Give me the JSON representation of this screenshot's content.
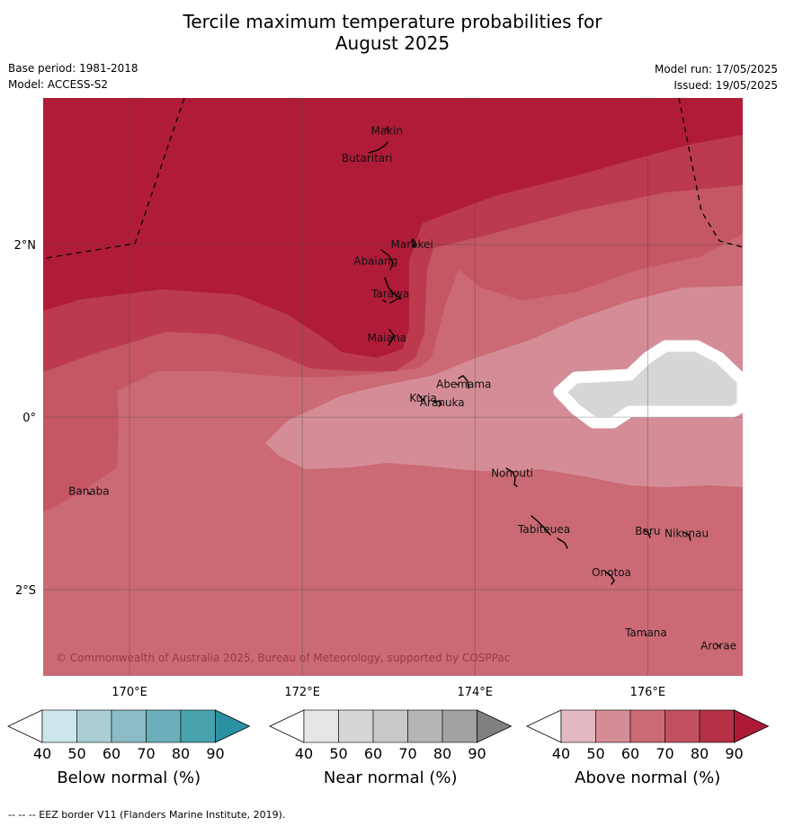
{
  "title_line1": "Tercile maximum temperature probabilities for",
  "title_line2": "August 2025",
  "meta": {
    "base_period": "Base period: 1981-2018",
    "model": "Model: ACCESS-S2",
    "model_run": "Model run: 17/05/2025",
    "issued": "Issued: 19/05/2025"
  },
  "map": {
    "lon_range": [
      169.0,
      177.1
    ],
    "lat_range": [
      -3.0,
      3.7
    ],
    "lon_ticks": [
      170,
      172,
      174,
      176
    ],
    "lon_tick_labels": [
      "170°E",
      "172°E",
      "174°E",
      "176°E"
    ],
    "lat_ticks": [
      2,
      0,
      -2
    ],
    "lat_tick_labels": [
      "2°N",
      "0°",
      "2°S"
    ],
    "copyright": "© Commonwealth of Australia 2025, Bureau of Meteorology, supported by COSPPac",
    "colors": {
      "above_90": "#b01c38",
      "above_80": "#bb3a4e",
      "above_70": "#c45762",
      "above_60": "#cb6a74",
      "above_50": "#d48d96",
      "near_50": "#d6d6d6"
    },
    "places": [
      {
        "name": "Makin",
        "lon": 172.98,
        "lat": 3.32
      },
      {
        "name": "Butaritari",
        "lon": 172.75,
        "lat": 3.0
      },
      {
        "name": "Marakei",
        "lon": 173.27,
        "lat": 2.0
      },
      {
        "name": "Abaiang",
        "lon": 172.85,
        "lat": 1.81
      },
      {
        "name": "Tarawa",
        "lon": 173.02,
        "lat": 1.43
      },
      {
        "name": "Maiana",
        "lon": 172.98,
        "lat": 0.92
      },
      {
        "name": "Abemama",
        "lon": 173.87,
        "lat": 0.38
      },
      {
        "name": "Kuria",
        "lon": 173.4,
        "lat": 0.22
      },
      {
        "name": "Aranuka",
        "lon": 173.62,
        "lat": 0.17
      },
      {
        "name": "Nonouti",
        "lon": 174.43,
        "lat": -0.65
      },
      {
        "name": "Banaba",
        "lon": 169.53,
        "lat": -0.86
      },
      {
        "name": "Tabiteuea",
        "lon": 174.8,
        "lat": -1.3
      },
      {
        "name": "Beru",
        "lon": 176.0,
        "lat": -1.32
      },
      {
        "name": "Nikunau",
        "lon": 176.45,
        "lat": -1.35
      },
      {
        "name": "Onotoa",
        "lon": 175.58,
        "lat": -1.8
      },
      {
        "name": "Tamana",
        "lon": 175.98,
        "lat": -2.5
      },
      {
        "name": "Arorae",
        "lon": 176.82,
        "lat": -2.65
      }
    ]
  },
  "colorbars": [
    {
      "title": "Below normal (%)",
      "ticks": [
        "40",
        "50",
        "60",
        "70",
        "80",
        "90"
      ],
      "colors": [
        "#ffffff",
        "#cce6ec",
        "#a9cdd5",
        "#8bbbc5",
        "#6caeba",
        "#48a2ae",
        "#2a91a2"
      ]
    },
    {
      "title": "Near normal (%)",
      "ticks": [
        "40",
        "50",
        "60",
        "70",
        "80",
        "90"
      ],
      "colors": [
        "#ffffff",
        "#e6e6e6",
        "#d6d6d6",
        "#c8c8c8",
        "#b5b5b5",
        "#a1a1a1",
        "#808080"
      ]
    },
    {
      "title": "Above normal (%)",
      "ticks": [
        "40",
        "50",
        "60",
        "70",
        "80",
        "90"
      ],
      "colors": [
        "#ffffff",
        "#e3b8c0",
        "#d48d96",
        "#cb6a74",
        "#c2505f",
        "#b53044",
        "#ad1a34"
      ]
    }
  ],
  "footer": "-- -- -- EEZ border V11 (Flanders Marine Institute, 2019)."
}
